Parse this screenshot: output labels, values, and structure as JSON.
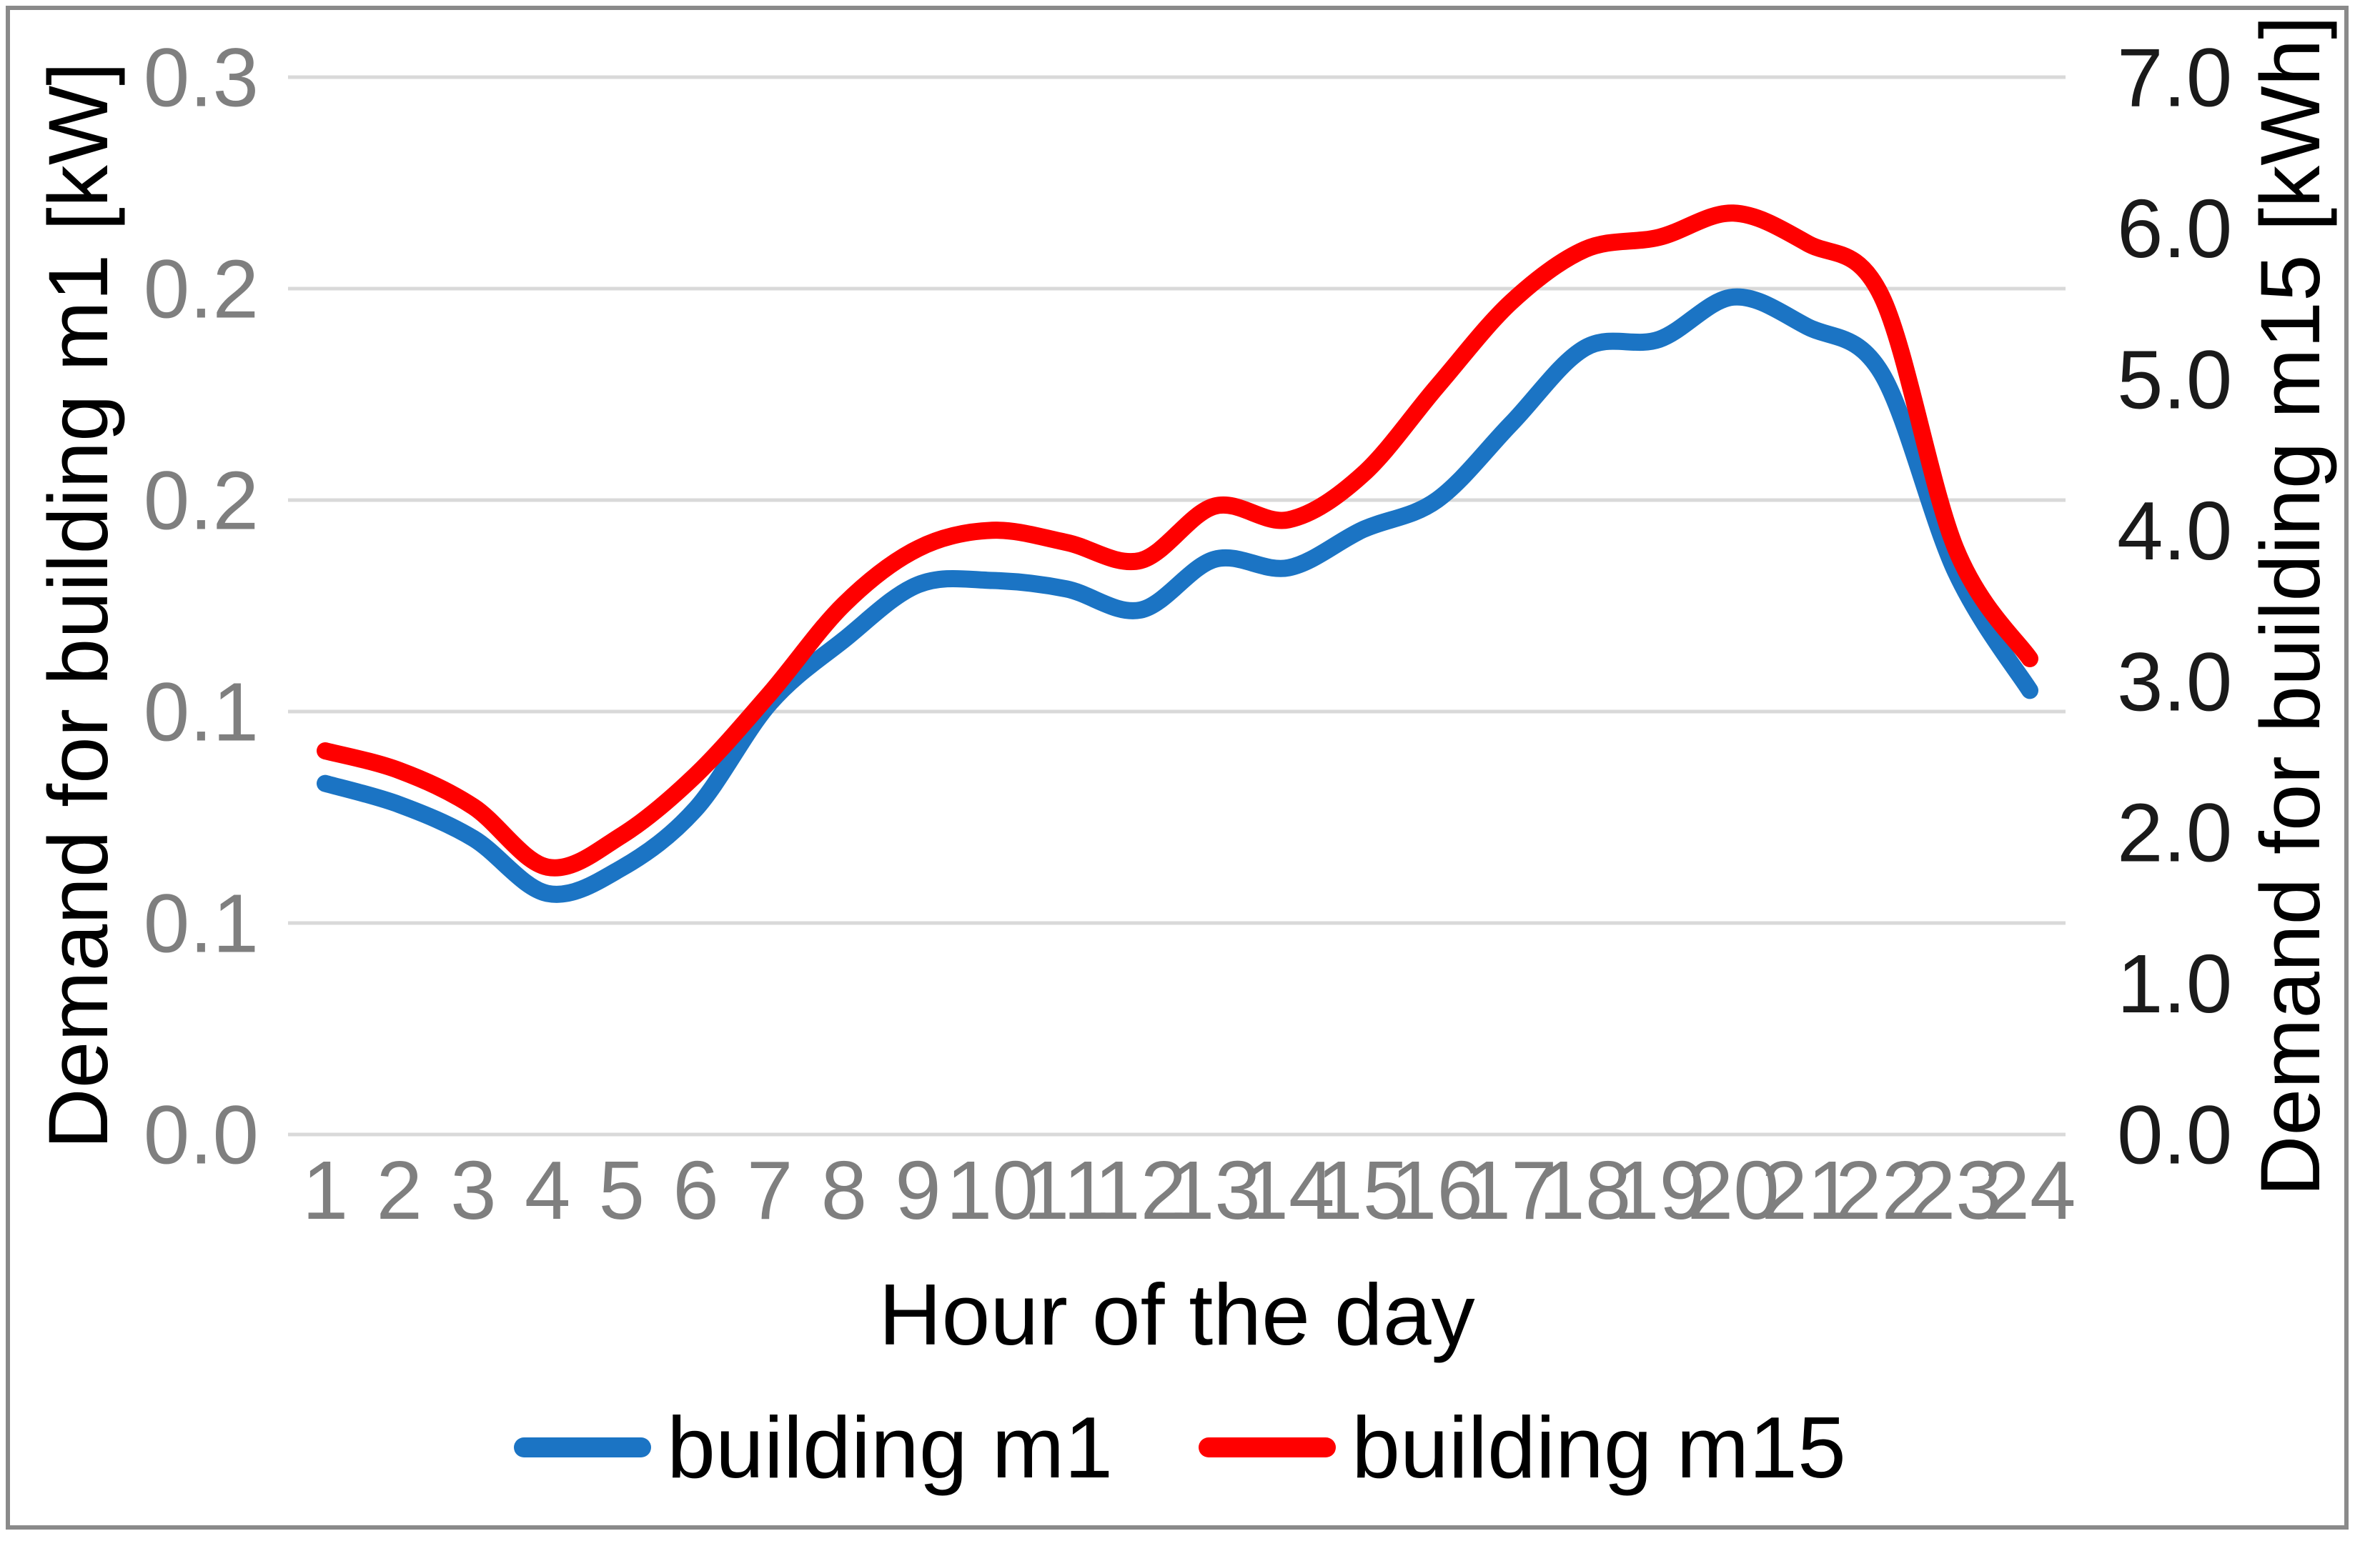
{
  "figure": {
    "background": "#ffffff",
    "border_color": "#8a8a8a",
    "gridline_color": "#d9d9d9",
    "tick_label_color_left": "#7f7f7f",
    "tick_label_color_right": "#1a1a1a",
    "tick_label_color_x": "#7f7f7f"
  },
  "titles": {
    "y_left": "Demand for building m1 [kW]",
    "y_right": "Demand for building m15 [kWh]",
    "x": "Hour of the day"
  },
  "legend": {
    "items": [
      {
        "label": "building m1",
        "color": "#1b74c4"
      },
      {
        "label": "building m15",
        "color": "#ff0000"
      }
    ]
  },
  "chart_data": {
    "type": "line",
    "title": "",
    "xlabel": "Hour of the day",
    "ylabel_left": "Demand for building m1 [kW]",
    "ylabel_right": "Demand for building m15 [kWh]",
    "grid": "horizontal",
    "legend_position": "bottom",
    "x": [
      1,
      2,
      3,
      4,
      5,
      6,
      7,
      8,
      9,
      10,
      11,
      12,
      13,
      14,
      15,
      16,
      17,
      18,
      19,
      20,
      21,
      22,
      23,
      24
    ],
    "x_tick_labels": [
      "1",
      "2",
      "3",
      "4",
      "5",
      "6",
      "7",
      "8",
      "9",
      "10",
      "11",
      "12",
      "13",
      "14",
      "15",
      "16",
      "17",
      "18",
      "19",
      "20",
      "21",
      "22",
      "23",
      "24"
    ],
    "left_axis": {
      "min": 0,
      "max": 0.25,
      "tick_values": [
        0.25,
        0.2,
        0.15,
        0.1,
        0.05,
        0.0
      ],
      "tick_labels": [
        "0.3",
        "0.2",
        "0.2",
        "0.1",
        "0.1",
        "0.0"
      ]
    },
    "right_axis": {
      "min": 0,
      "max": 7,
      "tick_values": [
        7,
        6,
        5,
        4,
        3,
        2,
        1,
        0
      ],
      "tick_labels": [
        "7.0",
        "6.0",
        "5.0",
        "4.0",
        "3.0",
        "2.0",
        "1.0",
        "0.0"
      ]
    },
    "series": [
      {
        "name": "building m1",
        "axis": "left",
        "color": "#1b74c4",
        "values": [
          0.083,
          0.078,
          0.07,
          0.057,
          0.063,
          0.077,
          0.102,
          0.117,
          0.13,
          0.131,
          0.129,
          0.124,
          0.136,
          0.134,
          0.143,
          0.15,
          0.168,
          0.186,
          0.188,
          0.198,
          0.191,
          0.18,
          0.133,
          0.105
        ]
      },
      {
        "name": "building m15",
        "axis": "right",
        "color": "#ff0000",
        "values": [
          2.54,
          2.41,
          2.17,
          1.77,
          1.98,
          2.38,
          2.92,
          3.51,
          3.88,
          4.0,
          3.92,
          3.8,
          4.16,
          4.07,
          4.37,
          4.95,
          5.51,
          5.86,
          5.94,
          6.1,
          5.9,
          5.55,
          3.88,
          3.15
        ]
      }
    ]
  }
}
